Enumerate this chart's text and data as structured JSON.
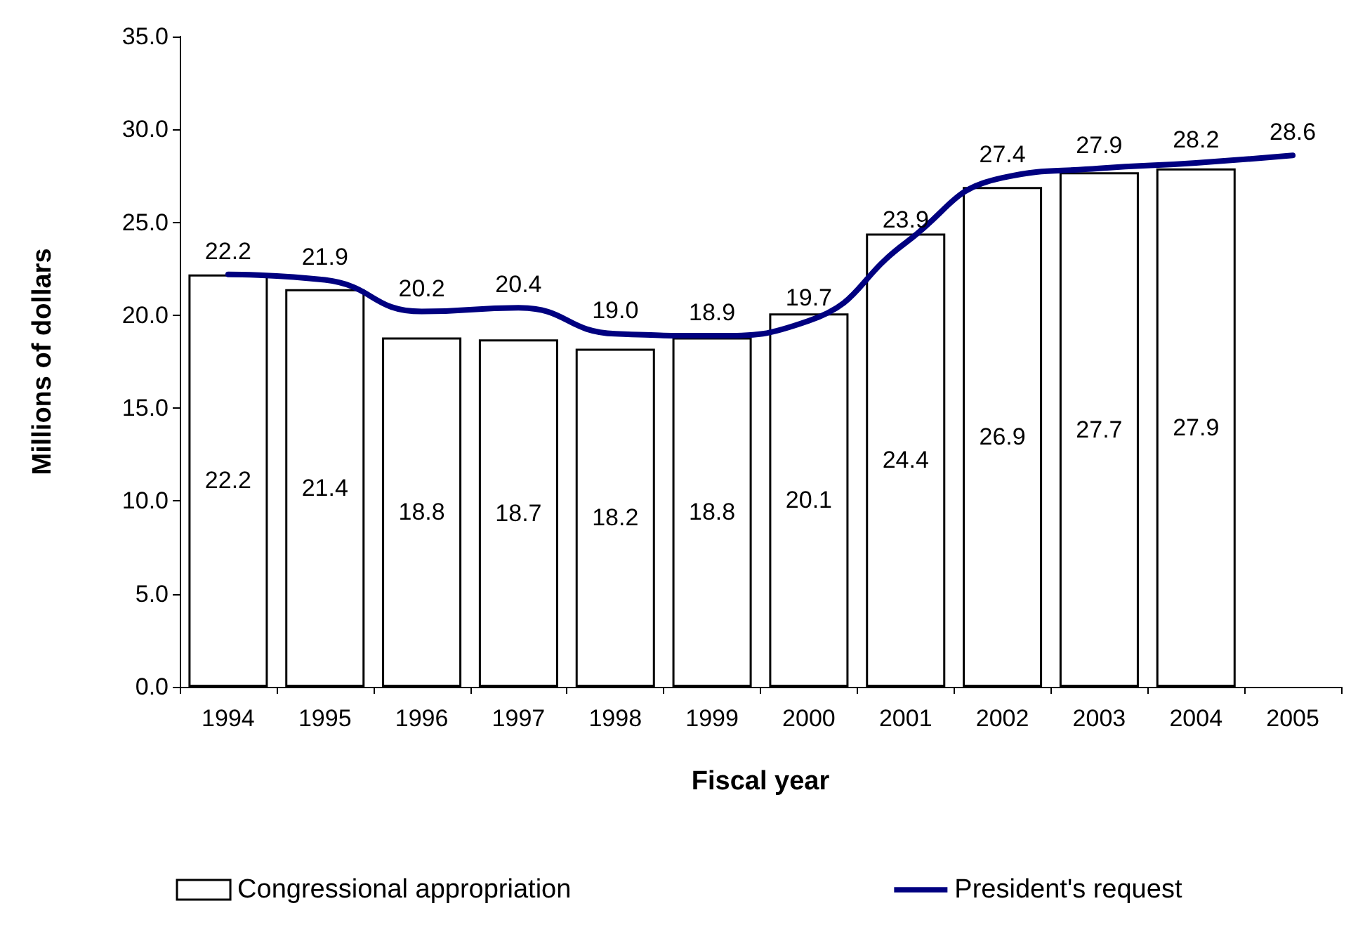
{
  "chart_data": {
    "type": "bar",
    "xlabel": "Fiscal year",
    "ylabel": "Millions of dollars",
    "categories": [
      "1994",
      "1995",
      "1996",
      "1997",
      "1998",
      "1999",
      "2000",
      "2001",
      "2002",
      "2003",
      "2004",
      "2005"
    ],
    "series": [
      {
        "name": "Congressional appropriation",
        "color": "#ffffff",
        "values": [
          22.2,
          21.4,
          18.8,
          18.7,
          18.2,
          18.8,
          20.1,
          24.4,
          26.9,
          27.7,
          27.9,
          null
        ],
        "value_labels": [
          "22.2",
          "21.4",
          "18.8",
          "18.7",
          "18.2",
          "18.8",
          "20.1",
          "24.4",
          "26.9",
          "27.7",
          "27.9",
          null
        ]
      },
      {
        "name": "President's request",
        "type": "line",
        "color": "#000080",
        "values": [
          22.2,
          21.9,
          20.2,
          20.4,
          19.0,
          18.9,
          19.7,
          23.9,
          27.4,
          27.9,
          28.2,
          28.6
        ],
        "value_labels": [
          "22.2",
          "21.9",
          "20.2",
          "20.4",
          "19.0",
          "18.9",
          "19.7",
          "23.9",
          "27.4",
          "27.9",
          "28.2",
          "28.6"
        ]
      }
    ],
    "ylim": [
      0,
      35
    ],
    "yticks": [
      {
        "value": 0,
        "label": "0.0"
      },
      {
        "value": 5,
        "label": "5.0"
      },
      {
        "value": 10,
        "label": "10.0"
      },
      {
        "value": 15,
        "label": "15.0"
      },
      {
        "value": 20,
        "label": "20.0"
      },
      {
        "value": 25,
        "label": "25.0"
      },
      {
        "value": 30,
        "label": "30.0"
      },
      {
        "value": 35,
        "label": "35.0"
      }
    ],
    "grid": false,
    "legend": "bottom",
    "marker": "none",
    "line_style": "solid"
  }
}
